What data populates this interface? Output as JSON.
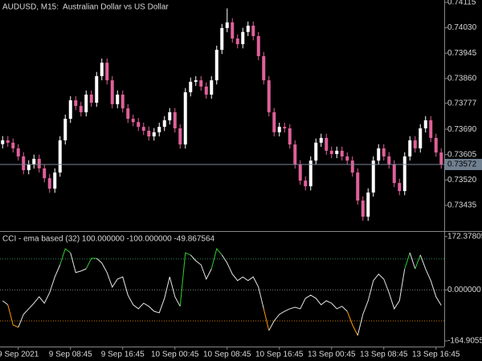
{
  "chart_data": [
    {
      "type": "candlestick",
      "title": "AUDUSD, M15:  Australian Dollar vs US Dollar",
      "categories": [
        null,
        null,
        null,
        "9 Sep 2021",
        null,
        null,
        null,
        null,
        null,
        null,
        null,
        null,
        null,
        "9 Sep 08:45",
        null,
        null,
        null,
        null,
        null,
        null,
        null,
        null,
        null,
        "9 Sep 16:45",
        null,
        null,
        null,
        null,
        null,
        null,
        null,
        null,
        null,
        "10 Sep 00:45",
        null,
        null,
        null,
        null,
        null,
        null,
        null,
        null,
        null,
        "10 Sep 08:45",
        null,
        null,
        null,
        null,
        null,
        null,
        null,
        null,
        null,
        "10 Sep 16:45",
        null,
        null,
        null,
        null,
        null,
        null,
        null,
        null,
        null,
        "13 Sep 00:45",
        null,
        null,
        null,
        null,
        null,
        null,
        null,
        null,
        null,
        "13 Sep 08:45",
        null,
        null,
        null,
        null,
        null,
        null,
        null,
        null,
        null,
        "13 Sep 16:45",
        null
      ],
      "open": [
        0.7364,
        0.73653,
        0.73645,
        0.73626,
        0.73599,
        0.73553,
        0.73572,
        0.73591,
        0.73559,
        0.73526,
        0.73491,
        0.73545,
        0.73653,
        0.73725,
        0.73787,
        0.73768,
        0.73747,
        0.73806,
        0.73779,
        0.73868,
        0.73913,
        0.73854,
        0.73774,
        0.73806,
        0.7376,
        0.73725,
        0.73714,
        0.73698,
        0.73685,
        0.73666,
        0.7368,
        0.73698,
        0.7372,
        0.73747,
        0.73693,
        0.73639,
        0.73814,
        0.73849,
        0.73854,
        0.73833,
        0.73806,
        0.73854,
        0.73956,
        0.74029,
        0.74048,
        0.73994,
        0.73975,
        0.74016,
        0.74037,
        0.74002,
        0.73935,
        0.73854,
        0.73747,
        0.7368,
        0.73698,
        0.73693,
        0.73639,
        0.73572,
        0.73518,
        0.73499,
        0.73585,
        0.73645,
        0.73661,
        0.73618,
        0.73607,
        0.73618,
        0.73599,
        0.73585,
        0.73545,
        0.73451,
        0.73397,
        0.73478,
        0.73585,
        0.73626,
        0.73599,
        0.73572,
        0.7351,
        0.73483,
        0.73599,
        0.73653,
        0.73626,
        0.73693,
        0.7372,
        0.73661,
        0.73612
      ],
      "high": [
        0.73667,
        0.73667,
        0.73659,
        0.7364,
        0.73613,
        0.73586,
        0.73605,
        0.73605,
        0.73573,
        0.7354,
        0.73559,
        0.73667,
        0.73739,
        0.73801,
        0.73801,
        0.73782,
        0.7382,
        0.7382,
        0.73882,
        0.73927,
        0.73927,
        0.73868,
        0.7382,
        0.7382,
        0.73774,
        0.73739,
        0.73728,
        0.73712,
        0.73699,
        0.73694,
        0.73712,
        0.73734,
        0.73761,
        0.73761,
        0.73707,
        0.73828,
        0.73863,
        0.73868,
        0.73868,
        0.73847,
        0.73868,
        0.7397,
        0.74043,
        0.74095,
        0.74062,
        0.74008,
        0.7403,
        0.74051,
        0.74051,
        0.74016,
        0.73949,
        0.73868,
        0.73761,
        0.73712,
        0.73712,
        0.73707,
        0.73653,
        0.73586,
        0.73532,
        0.73599,
        0.73659,
        0.73675,
        0.73675,
        0.73632,
        0.73632,
        0.73632,
        0.73613,
        0.73599,
        0.73559,
        0.73465,
        0.73492,
        0.73599,
        0.7364,
        0.7364,
        0.73613,
        0.73586,
        0.73524,
        0.73613,
        0.73667,
        0.73667,
        0.73707,
        0.73734,
        0.73734,
        0.73675,
        0.73626
      ],
      "low": [
        0.73626,
        0.73631,
        0.73612,
        0.73585,
        0.73539,
        0.73539,
        0.73558,
        0.73545,
        0.73512,
        0.73477,
        0.73477,
        0.73531,
        0.73639,
        0.73711,
        0.73754,
        0.73733,
        0.73733,
        0.73765,
        0.73765,
        0.73854,
        0.7384,
        0.7376,
        0.7376,
        0.73746,
        0.73711,
        0.737,
        0.73684,
        0.73671,
        0.73652,
        0.73652,
        0.73666,
        0.73684,
        0.73706,
        0.73679,
        0.73625,
        0.73625,
        0.738,
        0.73835,
        0.73819,
        0.73792,
        0.73792,
        0.7384,
        0.73942,
        0.74015,
        0.7398,
        0.73961,
        0.73961,
        0.74002,
        0.73988,
        0.73921,
        0.7384,
        0.73733,
        0.73666,
        0.73666,
        0.73679,
        0.73625,
        0.73558,
        0.73504,
        0.73485,
        0.73485,
        0.73571,
        0.73631,
        0.73604,
        0.73593,
        0.73593,
        0.73585,
        0.73571,
        0.73531,
        0.73437,
        0.73383,
        0.73383,
        0.73464,
        0.73571,
        0.73585,
        0.73558,
        0.73496,
        0.73469,
        0.73469,
        0.73585,
        0.73612,
        0.73612,
        0.73679,
        0.73647,
        0.73598,
        0.73558
      ],
      "close": [
        0.73653,
        0.73645,
        0.73626,
        0.73599,
        0.73553,
        0.73572,
        0.73591,
        0.73559,
        0.73526,
        0.73491,
        0.73545,
        0.73653,
        0.73725,
        0.73787,
        0.73768,
        0.73747,
        0.73806,
        0.73779,
        0.73868,
        0.73913,
        0.73854,
        0.73774,
        0.73806,
        0.7376,
        0.73725,
        0.73714,
        0.73698,
        0.73685,
        0.73666,
        0.7368,
        0.73698,
        0.7372,
        0.73747,
        0.73693,
        0.73639,
        0.73814,
        0.73849,
        0.73854,
        0.73833,
        0.73806,
        0.73854,
        0.73956,
        0.74029,
        0.74048,
        0.73994,
        0.73975,
        0.74016,
        0.74037,
        0.74002,
        0.73935,
        0.73854,
        0.73747,
        0.7368,
        0.73698,
        0.73693,
        0.73639,
        0.73572,
        0.73518,
        0.73499,
        0.73585,
        0.73645,
        0.73661,
        0.73618,
        0.73607,
        0.73618,
        0.73599,
        0.73585,
        0.73545,
        0.73451,
        0.73397,
        0.73478,
        0.73585,
        0.73626,
        0.73599,
        0.73572,
        0.7351,
        0.73483,
        0.73599,
        0.73653,
        0.73626,
        0.73693,
        0.7372,
        0.73661,
        0.73612,
        0.73572
      ],
      "up_color": "#ffffff",
      "down_color": "#e0609a",
      "current_price": 0.73572,
      "ylim": [
        0.73349,
        0.74123
      ],
      "yticks": [
        0.74115,
        {
          "value": 0.7403,
          "label": "0.74030"
        },
        0.73945,
        {
          "value": 0.7386,
          "label": "0.73860"
        },
        0.73777,
        {
          "value": 0.7369,
          "label": "0.73690"
        },
        0.73605,
        {
          "value": 0.7352,
          "label": "0.73520"
        },
        0.73435
      ]
    },
    {
      "type": "line",
      "title": "CCI - ema based (32) 100.000000 -100.000000 -49.867564",
      "values": [
        -35,
        -48,
        -113,
        -121,
        -79,
        -61,
        -43,
        -22,
        -43,
        -9,
        42,
        81,
        133,
        120,
        56,
        61,
        68,
        102,
        102,
        87,
        56,
        9,
        35,
        42,
        -17,
        -48,
        -61,
        -43,
        -53,
        -69,
        -74,
        -27,
        42,
        -22,
        -53,
        120,
        113,
        94,
        81,
        35,
        68,
        133,
        113,
        87,
        51,
        30,
        42,
        30,
        42,
        9,
        -61,
        -131,
        -100,
        -79,
        -69,
        -61,
        -56,
        -61,
        -27,
        -17,
        -27,
        -48,
        -35,
        -43,
        -61,
        -53,
        -69,
        -113,
        -147,
        -79,
        -35,
        30,
        51,
        35,
        -9,
        -61,
        -35,
        68,
        120,
        68,
        113,
        68,
        30,
        -22,
        -50
      ],
      "color": "#e6e6e6",
      "high_color": "#32cd32",
      "low_color": "#ff9900",
      "levels": [
        {
          "value": 100,
          "color": "#2e8b57"
        },
        {
          "value": 0,
          "color": "#808080"
        },
        {
          "value": -100,
          "color": "#cc7a00"
        }
      ],
      "ylim": [
        -183,
        185
      ],
      "yticks": [
        172.378055,
        {
          "value": 0,
          "label": "0.000000"
        },
        -164.9055
      ]
    }
  ]
}
